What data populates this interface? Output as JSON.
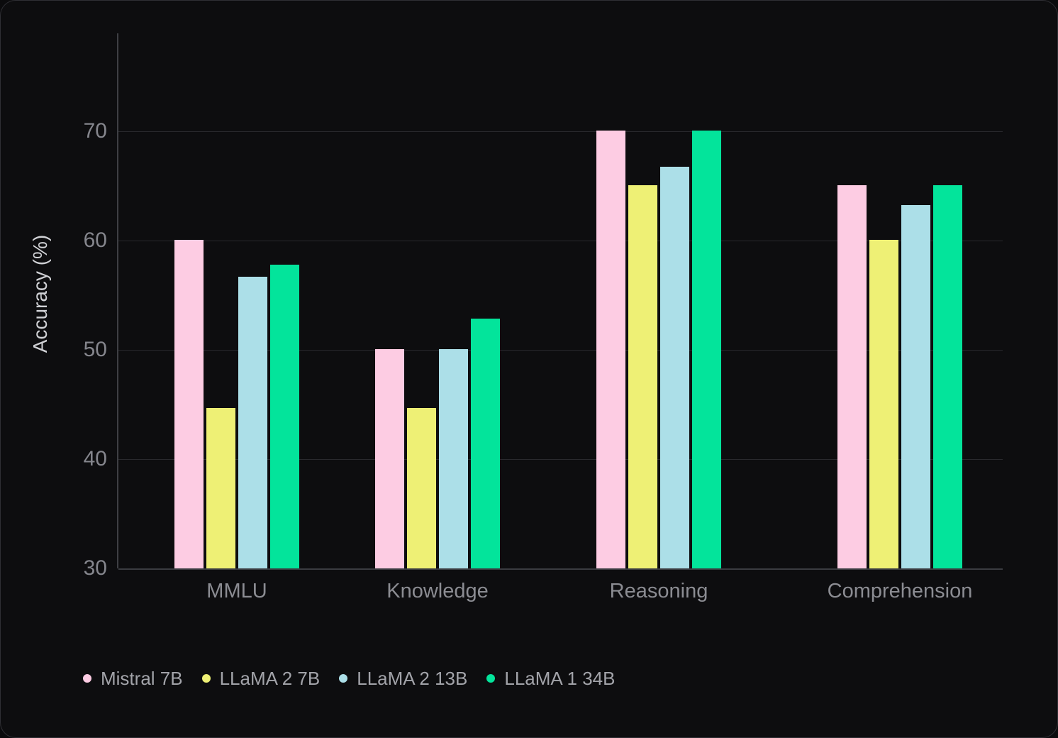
{
  "chart_data": {
    "type": "bar",
    "title": "",
    "ylabel": "Accuracy (%)",
    "categories": [
      "MMLU",
      "Knowledge",
      "Reasoning",
      "Comprehension"
    ],
    "series": [
      {
        "name": "Mistral 7B",
        "color": "#FDCCE3",
        "values": [
          60.1,
          50.1,
          70.1,
          65.1
        ]
      },
      {
        "name": "LLaMA 2 7B",
        "color": "#EEF075",
        "values": [
          44.7,
          44.7,
          65.1,
          60.1
        ]
      },
      {
        "name": "LLaMA 2 13B",
        "color": "#ACDFE8",
        "values": [
          56.7,
          50.1,
          66.8,
          63.3
        ]
      },
      {
        "name": "LLaMA 1 34B",
        "color": "#03E49B",
        "values": [
          57.8,
          52.9,
          70.1,
          65.1
        ]
      }
    ],
    "yticks": [
      30,
      40,
      50,
      60,
      70
    ],
    "ylim": [
      30,
      79
    ],
    "grid": true,
    "legend_position": "bottom-left"
  }
}
